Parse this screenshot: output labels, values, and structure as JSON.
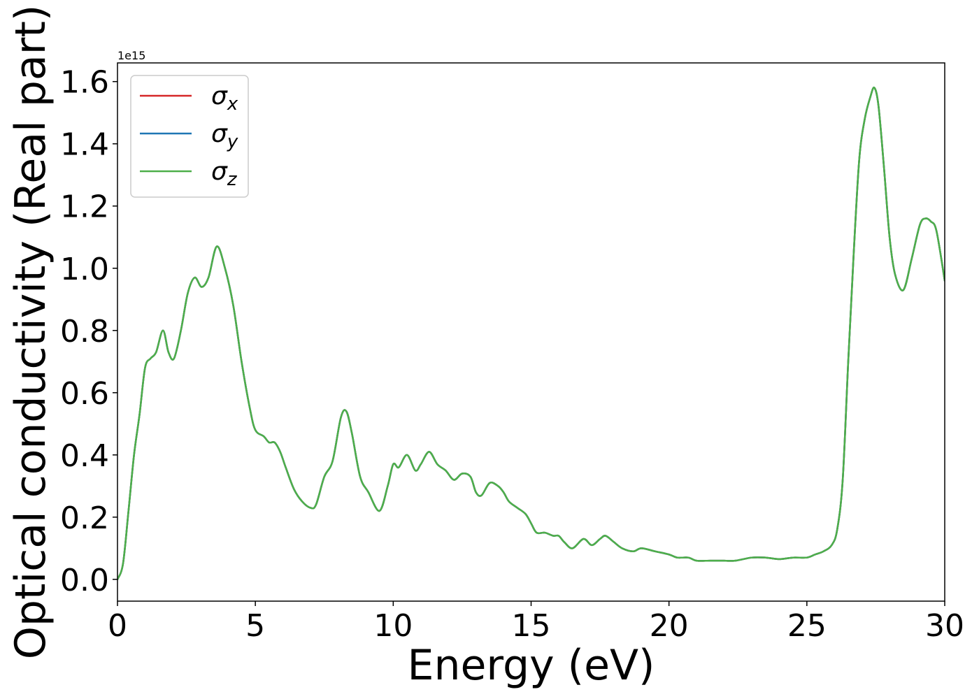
{
  "chart_data": {
    "type": "line",
    "title": "",
    "xlabel": "Energy (eV)",
    "ylabel": "Optical conductivity (Real part)",
    "y_offset_label": "1e15",
    "xlim": [
      0,
      30
    ],
    "ylim": [
      -0.07,
      1.66
    ],
    "xticks": [
      0,
      5,
      10,
      15,
      20,
      25,
      30
    ],
    "xtick_labels": [
      "0",
      "5",
      "10",
      "15",
      "20",
      "25",
      "30"
    ],
    "yticks": [
      0.0,
      0.2,
      0.4,
      0.6,
      0.8,
      1.0,
      1.2,
      1.4,
      1.6
    ],
    "ytick_labels": [
      "0.0",
      "0.2",
      "0.4",
      "0.6",
      "0.8",
      "1.0",
      "1.2",
      "1.4",
      "1.6"
    ],
    "grid": false,
    "legend": {
      "placement": "top-left"
    },
    "x": [
      0,
      0.2,
      0.4,
      0.6,
      0.8,
      1.0,
      1.2,
      1.4,
      1.65,
      1.85,
      2.05,
      2.3,
      2.55,
      2.8,
      3.05,
      3.3,
      3.6,
      3.9,
      4.2,
      4.5,
      4.8,
      5.0,
      5.3,
      5.5,
      5.7,
      5.9,
      6.1,
      6.4,
      6.7,
      7.0,
      7.2,
      7.5,
      7.8,
      8.1,
      8.3,
      8.5,
      8.8,
      9.1,
      9.5,
      9.8,
      10.0,
      10.2,
      10.5,
      10.8,
      11.0,
      11.3,
      11.6,
      11.9,
      12.2,
      12.5,
      12.8,
      13.0,
      13.2,
      13.5,
      13.8,
      14.0,
      14.2,
      14.5,
      14.8,
      15.0,
      15.2,
      15.5,
      15.8,
      16.0,
      16.2,
      16.5,
      16.9,
      17.2,
      17.5,
      17.7,
      18.0,
      18.3,
      18.7,
      19.0,
      19.5,
      20.0,
      20.3,
      20.7,
      21.0,
      21.5,
      22.0,
      22.4,
      23.0,
      23.5,
      24.0,
      24.5,
      25.0,
      25.3,
      25.6,
      25.9,
      26.1,
      26.3,
      26.5,
      26.7,
      26.9,
      27.1,
      27.3,
      27.45,
      27.6,
      27.8,
      28.0,
      28.2,
      28.5,
      28.8,
      29.1,
      29.3,
      29.5,
      29.7,
      30.0
    ],
    "series": [
      {
        "name": "σx",
        "color": "#d62728",
        "values": [
          0.0,
          0.05,
          0.22,
          0.4,
          0.53,
          0.68,
          0.71,
          0.73,
          0.8,
          0.73,
          0.71,
          0.8,
          0.92,
          0.97,
          0.94,
          0.97,
          1.07,
          1.0,
          0.88,
          0.7,
          0.55,
          0.48,
          0.46,
          0.44,
          0.44,
          0.41,
          0.36,
          0.29,
          0.25,
          0.23,
          0.24,
          0.33,
          0.38,
          0.52,
          0.54,
          0.47,
          0.33,
          0.28,
          0.22,
          0.3,
          0.37,
          0.36,
          0.4,
          0.35,
          0.37,
          0.41,
          0.37,
          0.35,
          0.32,
          0.34,
          0.33,
          0.28,
          0.27,
          0.31,
          0.3,
          0.28,
          0.25,
          0.23,
          0.21,
          0.18,
          0.15,
          0.15,
          0.14,
          0.14,
          0.12,
          0.1,
          0.13,
          0.11,
          0.13,
          0.14,
          0.12,
          0.1,
          0.09,
          0.1,
          0.09,
          0.08,
          0.07,
          0.07,
          0.06,
          0.06,
          0.06,
          0.06,
          0.07,
          0.07,
          0.065,
          0.07,
          0.07,
          0.08,
          0.09,
          0.11,
          0.16,
          0.32,
          0.7,
          1.05,
          1.35,
          1.48,
          1.55,
          1.58,
          1.52,
          1.32,
          1.1,
          0.98,
          0.93,
          1.03,
          1.14,
          1.16,
          1.15,
          1.12,
          0.96
        ]
      },
      {
        "name": "σy",
        "color": "#1f77b4",
        "values": [
          0.0,
          0.05,
          0.22,
          0.4,
          0.53,
          0.68,
          0.71,
          0.73,
          0.8,
          0.73,
          0.71,
          0.8,
          0.92,
          0.97,
          0.94,
          0.97,
          1.07,
          1.0,
          0.88,
          0.7,
          0.55,
          0.48,
          0.46,
          0.44,
          0.44,
          0.41,
          0.36,
          0.29,
          0.25,
          0.23,
          0.24,
          0.33,
          0.38,
          0.52,
          0.54,
          0.47,
          0.33,
          0.28,
          0.22,
          0.3,
          0.37,
          0.36,
          0.4,
          0.35,
          0.37,
          0.41,
          0.37,
          0.35,
          0.32,
          0.34,
          0.33,
          0.28,
          0.27,
          0.31,
          0.3,
          0.28,
          0.25,
          0.23,
          0.21,
          0.18,
          0.15,
          0.15,
          0.14,
          0.14,
          0.12,
          0.1,
          0.13,
          0.11,
          0.13,
          0.14,
          0.12,
          0.1,
          0.09,
          0.1,
          0.09,
          0.08,
          0.07,
          0.07,
          0.06,
          0.06,
          0.06,
          0.06,
          0.07,
          0.07,
          0.065,
          0.07,
          0.07,
          0.08,
          0.09,
          0.11,
          0.16,
          0.32,
          0.7,
          1.05,
          1.35,
          1.48,
          1.55,
          1.58,
          1.52,
          1.32,
          1.1,
          0.98,
          0.93,
          1.03,
          1.14,
          1.16,
          1.15,
          1.12,
          0.96
        ]
      },
      {
        "name": "σz",
        "color": "#4daf4a",
        "values": [
          0.0,
          0.05,
          0.22,
          0.4,
          0.53,
          0.68,
          0.71,
          0.73,
          0.8,
          0.73,
          0.71,
          0.8,
          0.92,
          0.97,
          0.94,
          0.97,
          1.07,
          1.0,
          0.88,
          0.7,
          0.55,
          0.48,
          0.46,
          0.44,
          0.44,
          0.41,
          0.36,
          0.29,
          0.25,
          0.23,
          0.24,
          0.33,
          0.38,
          0.52,
          0.54,
          0.47,
          0.33,
          0.28,
          0.22,
          0.3,
          0.37,
          0.36,
          0.4,
          0.35,
          0.37,
          0.41,
          0.37,
          0.35,
          0.32,
          0.34,
          0.33,
          0.28,
          0.27,
          0.31,
          0.3,
          0.28,
          0.25,
          0.23,
          0.21,
          0.18,
          0.15,
          0.15,
          0.14,
          0.14,
          0.12,
          0.1,
          0.13,
          0.11,
          0.13,
          0.14,
          0.12,
          0.1,
          0.09,
          0.1,
          0.09,
          0.08,
          0.07,
          0.07,
          0.06,
          0.06,
          0.06,
          0.06,
          0.07,
          0.07,
          0.065,
          0.07,
          0.07,
          0.08,
          0.09,
          0.11,
          0.16,
          0.32,
          0.7,
          1.05,
          1.35,
          1.48,
          1.55,
          1.58,
          1.52,
          1.32,
          1.1,
          0.98,
          0.93,
          1.03,
          1.14,
          1.16,
          1.15,
          1.12,
          0.96
        ]
      }
    ],
    "legend_entries": [
      {
        "symbol": "σ",
        "subscript": "x"
      },
      {
        "symbol": "σ",
        "subscript": "y"
      },
      {
        "symbol": "σ",
        "subscript": "z"
      }
    ]
  }
}
